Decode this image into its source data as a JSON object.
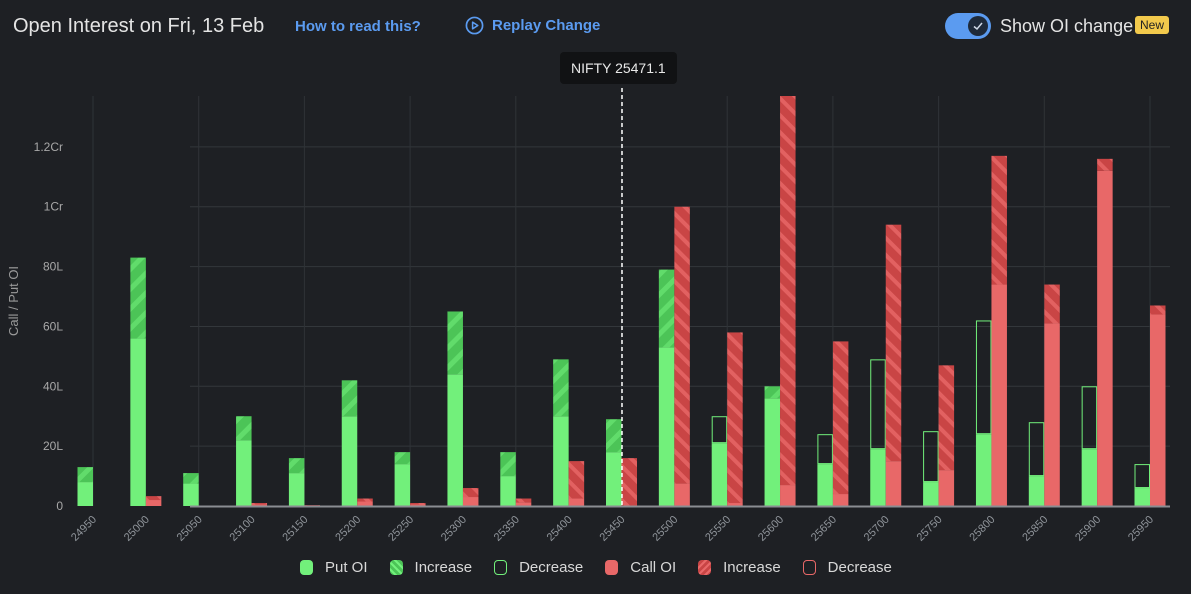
{
  "header": {
    "title": "Open Interest on Fri, 13 Feb",
    "how_to_read": "How to read this?",
    "replay": "Replay Change",
    "toggle_label": "Show OI change",
    "toggle_on": true,
    "badge": "New"
  },
  "tooltip": "NIFTY 25471.1",
  "colors": {
    "background": "#1e2024",
    "put": "#72f07b",
    "put_hatch": "#4cc457",
    "call": "#e86868",
    "call_hatch": "#c94545",
    "link": "#5b9bf0"
  },
  "legend": [
    {
      "label": "Put OI",
      "kind": "put-solid"
    },
    {
      "label": "Increase",
      "kind": "put-hatch"
    },
    {
      "label": "Decrease",
      "kind": "put-outline"
    },
    {
      "label": "Call OI",
      "kind": "call-solid"
    },
    {
      "label": "Increase",
      "kind": "call-hatch"
    },
    {
      "label": "Decrease",
      "kind": "call-outline"
    }
  ],
  "chart_data": {
    "type": "bar",
    "ylabel": "Call / Put OI",
    "unit": "lakh",
    "ylim": [
      0,
      137
    ],
    "yticks": [
      {
        "v": 0,
        "label": "0"
      },
      {
        "v": 20,
        "label": "20L"
      },
      {
        "v": 40,
        "label": "40L"
      },
      {
        "v": 60,
        "label": "60L"
      },
      {
        "v": 80,
        "label": "80L"
      },
      {
        "v": 100,
        "label": "1Cr"
      },
      {
        "v": 120,
        "label": "1.2Cr"
      }
    ],
    "spot_strike": "25450",
    "grid": true,
    "legend_position": "bottom",
    "categories": [
      "24950",
      "25000",
      "25050",
      "25100",
      "25150",
      "25200",
      "25250",
      "25300",
      "25350",
      "25400",
      "25450",
      "25500",
      "25550",
      "25600",
      "25650",
      "25700",
      "25750",
      "25800",
      "25850",
      "25900",
      "25950"
    ],
    "series": [
      {
        "name": "Put OI",
        "current": [
          13,
          83,
          11,
          30,
          16,
          42,
          18,
          65,
          18,
          49,
          29,
          79,
          21,
          40,
          14,
          19,
          8,
          24,
          10,
          19,
          6
        ],
        "previous": [
          8,
          56,
          7.5,
          22,
          11,
          30,
          14,
          44,
          10,
          30,
          18,
          53,
          30,
          36,
          24,
          49,
          25,
          62,
          28,
          40,
          14
        ]
      },
      {
        "name": "Call OI",
        "current": [
          0,
          3.3,
          0,
          1,
          0.3,
          2.5,
          1,
          6,
          2.5,
          15,
          16,
          100,
          58,
          137,
          55,
          94,
          47,
          117,
          74,
          116,
          67
        ],
        "previous": [
          0,
          2,
          0,
          0.5,
          0.2,
          1.5,
          0.5,
          3,
          1.2,
          2.5,
          0,
          7.5,
          1,
          7,
          4,
          15,
          12,
          74,
          61,
          112,
          64
        ]
      }
    ]
  }
}
